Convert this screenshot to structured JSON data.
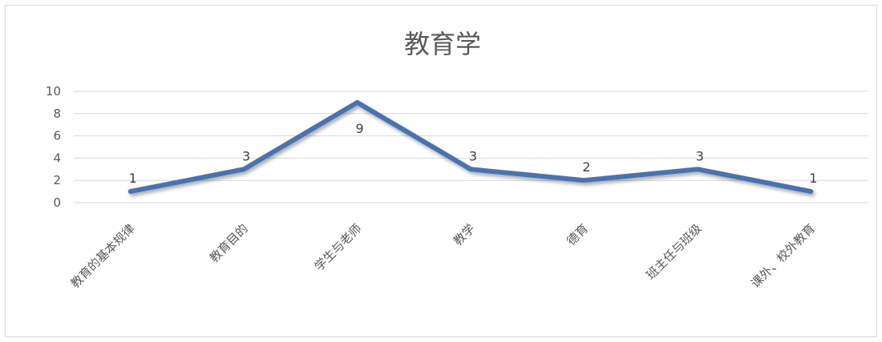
{
  "chart_data": {
    "type": "line",
    "title": "教育学",
    "xlabel": "",
    "ylabel": "",
    "categories": [
      "教育的基本规律",
      "教育目的",
      "学生与老师",
      "教学",
      "德育",
      "班主任与班级",
      "课外、校外教育"
    ],
    "series": [
      {
        "values": [
          1,
          3,
          9,
          3,
          2,
          3,
          1
        ]
      }
    ],
    "y_ticks": [
      "0",
      "2",
      "4",
      "6",
      "8",
      "10"
    ],
    "ylim": [
      0,
      10
    ],
    "grid": true,
    "legend": "none",
    "data_labels": [
      "1",
      "3",
      "9",
      "3",
      "2",
      "3",
      "1"
    ],
    "colors": {
      "line": "#4a72b0",
      "grid": "#d9d9d9",
      "text": "#595959"
    }
  }
}
